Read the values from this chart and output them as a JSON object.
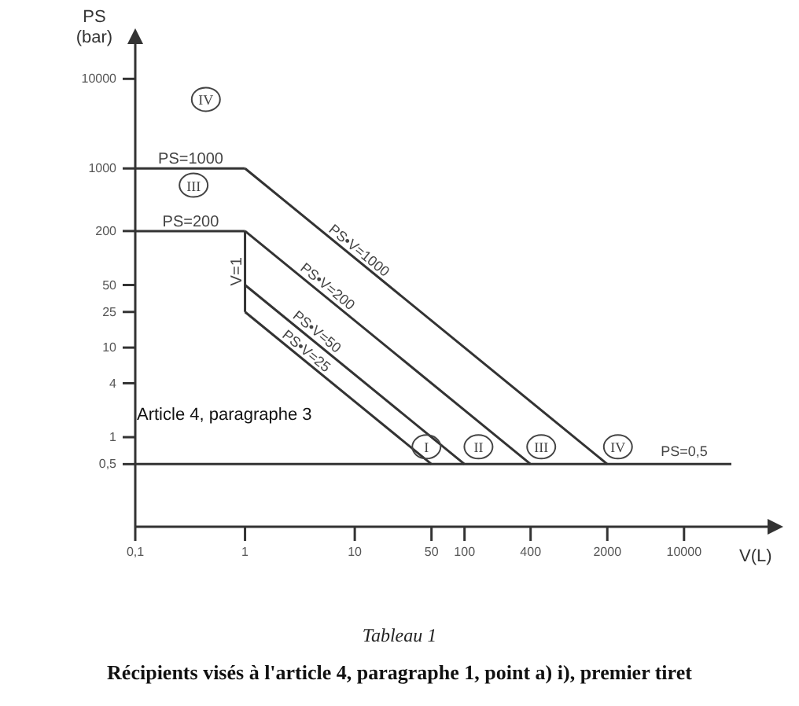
{
  "chart_data": {
    "type": "line",
    "title": "Tableau 1",
    "subtitle": "Récipients visés à l'article 4, paragraphe 1, point a) i), premier tiret",
    "xlabel": "V(L)",
    "ylabel": "PS (bar)",
    "log": "xy",
    "legend": false,
    "xlim": [
      0.1,
      27000
    ],
    "ylim": [
      0.1,
      20000
    ],
    "xticks": [
      {
        "value": 0.1,
        "label": "0,1"
      },
      1,
      10,
      50,
      100,
      400,
      2000,
      10000
    ],
    "yticks": [
      {
        "value": 0.5,
        "label": "0,5"
      },
      1,
      4,
      10,
      25,
      50,
      200,
      1000,
      10000
    ],
    "series": [
      {
        "color": "#333333",
        "x": [
          0.1,
          1
        ],
        "values": [
          1000,
          1000
        ]
      },
      {
        "name": "PS•V=1000",
        "color": "#333333",
        "x": [
          1,
          2000
        ],
        "values": [
          1000,
          0.5
        ]
      },
      {
        "color": "#333333",
        "x": [
          0.1,
          1
        ],
        "values": [
          200,
          200
        ]
      },
      {
        "color": "#333333",
        "x": [
          1,
          400
        ],
        "values": [
          200,
          0.5
        ]
      },
      {
        "name": "V=1",
        "color": "#333333",
        "x": [
          1,
          1
        ],
        "values": [
          200,
          25
        ]
      },
      {
        "color": "#333333",
        "x": [
          1,
          100
        ],
        "values": [
          50,
          0.5
        ]
      },
      {
        "name": "PS•V=25",
        "color": "#333333",
        "x": [
          1,
          50
        ],
        "values": [
          25,
          0.5
        ]
      }
    ],
    "ref_lines": [
      {
        "axis": "y",
        "value": 0.5,
        "label": "PS=0,5",
        "color": "#333333"
      }
    ],
    "annotations": [
      "Article 4, paragraphe 3",
      {
        "text": "PS=1000",
        "x": 0.32,
        "y": 1000
      },
      {
        "text": "PS=200",
        "x": 0.32,
        "y": 200
      },
      {
        "text": "PS•V=200",
        "x": 5,
        "y": 40
      },
      {
        "text": "PS•V=50",
        "x": 4,
        "y": 12.5
      },
      {
        "text": "IV",
        "x": 0.44,
        "y": 5900
      },
      {
        "text": "III",
        "x": 0.34,
        "y": 650
      },
      {
        "text": "I",
        "x": 45,
        "y": 0.78
      },
      {
        "text": "II",
        "x": 134,
        "y": 0.78
      },
      {
        "text": "III",
        "x": 500,
        "y": 0.78
      },
      {
        "text": "IV",
        "x": 2500,
        "y": 0.78
      }
    ]
  }
}
